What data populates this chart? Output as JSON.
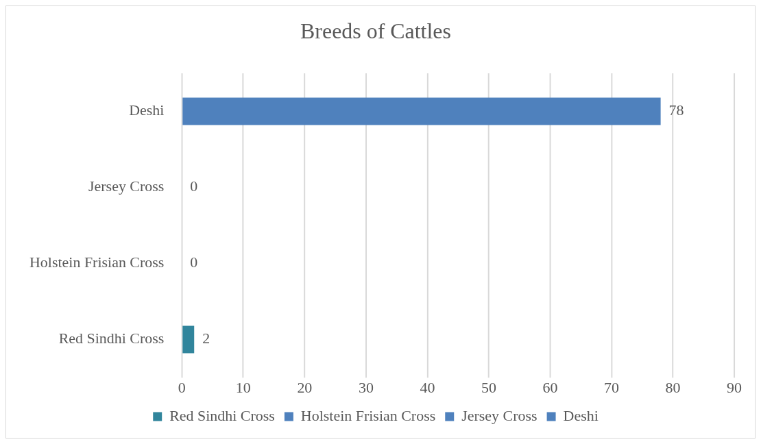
{
  "chart_data": {
    "type": "bar",
    "title": "Breeds of Cattles",
    "orientation": "horizontal",
    "categories": [
      "Deshi",
      "Jersey Cross",
      "Holstein Frisian Cross",
      "Red Sindhi Cross"
    ],
    "series": [
      {
        "name": "Red Sindhi Cross",
        "color": "#31859c",
        "values": [
          null,
          null,
          null,
          2
        ]
      },
      {
        "name": "Holstein Frisian Cross",
        "color": "#4f81bd",
        "values": [
          null,
          null,
          0,
          null
        ]
      },
      {
        "name": "Jersey Cross",
        "color": "#4f81bd",
        "values": [
          null,
          0,
          null,
          null
        ]
      },
      {
        "name": "Deshi",
        "color": "#4f81bd",
        "values": [
          78,
          null,
          null,
          null
        ]
      }
    ],
    "xlim": [
      0,
      90
    ],
    "xticks": [
      0,
      10,
      20,
      30,
      40,
      50,
      60,
      70,
      80,
      90
    ],
    "grid": "x",
    "legend": "bottom",
    "data_labels": true
  }
}
